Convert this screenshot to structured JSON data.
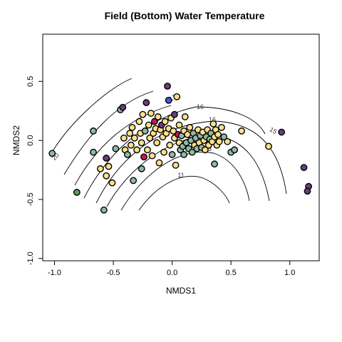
{
  "chart_data": {
    "type": "scatter",
    "title": "Field (Bottom) Water Temperature",
    "xlabel": "NMDS1",
    "ylabel": "NMDS2",
    "xlim": [
      -1.1,
      1.25
    ],
    "ylim": [
      -1.02,
      0.9
    ],
    "xticks": [
      "-1.0",
      "-0.5",
      "0.0",
      "0.5",
      "1.0"
    ],
    "yticks": [
      "-1.0",
      "-0.5",
      "0.0",
      "0.5"
    ],
    "contour_labels": [
      "20",
      "17",
      "16",
      "16",
      "15",
      "13",
      "11"
    ],
    "colors": {
      "purple": "#6a3d7c",
      "green": "#5aa25a",
      "sage": "#8fb8a0",
      "yellow": "#ffe08a",
      "magenta": "#c2185b",
      "blue": "#3b5bdb"
    },
    "points": [
      {
        "x": -1.02,
        "y": -0.11,
        "c": "sage"
      },
      {
        "x": -0.81,
        "y": -0.44,
        "c": "green"
      },
      {
        "x": -0.67,
        "y": 0.08,
        "c": "sage"
      },
      {
        "x": -0.67,
        "y": -0.1,
        "c": "sage"
      },
      {
        "x": -0.61,
        "y": -0.24,
        "c": "yellow"
      },
      {
        "x": -0.58,
        "y": -0.59,
        "c": "sage"
      },
      {
        "x": -0.56,
        "y": -0.15,
        "c": "purple"
      },
      {
        "x": -0.56,
        "y": -0.3,
        "c": "yellow"
      },
      {
        "x": -0.54,
        "y": -0.22,
        "c": "yellow"
      },
      {
        "x": -0.51,
        "y": -0.36,
        "c": "yellow"
      },
      {
        "x": -0.48,
        "y": -0.07,
        "c": "sage"
      },
      {
        "x": -0.44,
        "y": 0.26,
        "c": "sage"
      },
      {
        "x": -0.42,
        "y": 0.28,
        "c": "purple"
      },
      {
        "x": -0.41,
        "y": 0.02,
        "c": "yellow"
      },
      {
        "x": -0.4,
        "y": -0.08,
        "c": "yellow"
      },
      {
        "x": -0.38,
        "y": -0.12,
        "c": "sage"
      },
      {
        "x": -0.36,
        "y": 0.06,
        "c": "yellow"
      },
      {
        "x": -0.35,
        "y": -0.04,
        "c": "yellow"
      },
      {
        "x": -0.34,
        "y": 0.11,
        "c": "yellow"
      },
      {
        "x": -0.33,
        "y": -0.34,
        "c": "sage"
      },
      {
        "x": -0.32,
        "y": 0.02,
        "c": "yellow"
      },
      {
        "x": -0.3,
        "y": -0.08,
        "c": "yellow"
      },
      {
        "x": -0.28,
        "y": 0.16,
        "c": "yellow"
      },
      {
        "x": -0.27,
        "y": 0.06,
        "c": "yellow"
      },
      {
        "x": -0.26,
        "y": -0.02,
        "c": "yellow"
      },
      {
        "x": -0.26,
        "y": -0.24,
        "c": "sage"
      },
      {
        "x": -0.25,
        "y": 0.22,
        "c": "yellow"
      },
      {
        "x": -0.24,
        "y": -0.14,
        "c": "magenta"
      },
      {
        "x": -0.23,
        "y": 0.08,
        "c": "sage"
      },
      {
        "x": -0.22,
        "y": 0.32,
        "c": "purple"
      },
      {
        "x": -0.21,
        "y": -0.08,
        "c": "yellow"
      },
      {
        "x": -0.2,
        "y": 0.13,
        "c": "yellow"
      },
      {
        "x": -0.19,
        "y": 0.02,
        "c": "yellow"
      },
      {
        "x": -0.18,
        "y": 0.23,
        "c": "yellow"
      },
      {
        "x": -0.17,
        "y": -0.13,
        "c": "yellow"
      },
      {
        "x": -0.16,
        "y": 0.06,
        "c": "yellow"
      },
      {
        "x": -0.15,
        "y": 0.16,
        "c": "magenta"
      },
      {
        "x": -0.14,
        "y": 0.1,
        "c": "yellow"
      },
      {
        "x": -0.13,
        "y": -0.02,
        "c": "yellow"
      },
      {
        "x": -0.12,
        "y": 0.2,
        "c": "yellow"
      },
      {
        "x": -0.11,
        "y": -0.19,
        "c": "yellow"
      },
      {
        "x": -0.1,
        "y": 0.09,
        "c": "yellow"
      },
      {
        "x": -0.09,
        "y": 0.13,
        "c": "purple"
      },
      {
        "x": -0.08,
        "y": 0.03,
        "c": "yellow"
      },
      {
        "x": -0.07,
        "y": -0.1,
        "c": "yellow"
      },
      {
        "x": -0.06,
        "y": 0.16,
        "c": "yellow"
      },
      {
        "x": -0.05,
        "y": 0.06,
        "c": "yellow"
      },
      {
        "x": -0.04,
        "y": 0.46,
        "c": "purple"
      },
      {
        "x": -0.03,
        "y": 0.34,
        "c": "blue"
      },
      {
        "x": -0.03,
        "y": 0.1,
        "c": "yellow"
      },
      {
        "x": -0.02,
        "y": -0.04,
        "c": "yellow"
      },
      {
        "x": -0.01,
        "y": 0.19,
        "c": "yellow"
      },
      {
        "x": 0.0,
        "y": -0.12,
        "c": "sage"
      },
      {
        "x": 0.01,
        "y": 0.08,
        "c": "yellow"
      },
      {
        "x": 0.02,
        "y": 0.02,
        "c": "yellow"
      },
      {
        "x": 0.02,
        "y": 0.22,
        "c": "purple"
      },
      {
        "x": 0.03,
        "y": -0.21,
        "c": "yellow"
      },
      {
        "x": 0.04,
        "y": 0.37,
        "c": "yellow"
      },
      {
        "x": 0.05,
        "y": 0.05,
        "c": "magenta"
      },
      {
        "x": 0.06,
        "y": -0.02,
        "c": "yellow"
      },
      {
        "x": 0.06,
        "y": 0.13,
        "c": "yellow"
      },
      {
        "x": 0.07,
        "y": -0.08,
        "c": "sage"
      },
      {
        "x": 0.08,
        "y": 0.04,
        "c": "sage"
      },
      {
        "x": 0.09,
        "y": -0.05,
        "c": "sage"
      },
      {
        "x": 0.1,
        "y": 0.08,
        "c": "yellow"
      },
      {
        "x": 0.1,
        "y": -0.12,
        "c": "sage"
      },
      {
        "x": 0.11,
        "y": 0.2,
        "c": "yellow"
      },
      {
        "x": 0.12,
        "y": -0.02,
        "c": "sage"
      },
      {
        "x": 0.13,
        "y": 0.05,
        "c": "yellow"
      },
      {
        "x": 0.14,
        "y": -0.07,
        "c": "sage"
      },
      {
        "x": 0.15,
        "y": 0.11,
        "c": "yellow"
      },
      {
        "x": 0.16,
        "y": 0.0,
        "c": "sage"
      },
      {
        "x": 0.17,
        "y": -0.1,
        "c": "sage"
      },
      {
        "x": 0.18,
        "y": 0.06,
        "c": "sage"
      },
      {
        "x": 0.19,
        "y": -0.04,
        "c": "yellow"
      },
      {
        "x": 0.2,
        "y": 0.02,
        "c": "sage"
      },
      {
        "x": 0.21,
        "y": -0.07,
        "c": "sage"
      },
      {
        "x": 0.22,
        "y": 0.09,
        "c": "yellow"
      },
      {
        "x": 0.23,
        "y": -0.02,
        "c": "yellow"
      },
      {
        "x": 0.24,
        "y": 0.04,
        "c": "sage"
      },
      {
        "x": 0.25,
        "y": -0.06,
        "c": "sage"
      },
      {
        "x": 0.26,
        "y": 0.07,
        "c": "yellow"
      },
      {
        "x": 0.27,
        "y": 0.0,
        "c": "yellow"
      },
      {
        "x": 0.28,
        "y": -0.08,
        "c": "yellow"
      },
      {
        "x": 0.29,
        "y": 0.03,
        "c": "sage"
      },
      {
        "x": 0.3,
        "y": 0.09,
        "c": "yellow"
      },
      {
        "x": 0.31,
        "y": -0.04,
        "c": "yellow"
      },
      {
        "x": 0.32,
        "y": 0.01,
        "c": "sage"
      },
      {
        "x": 0.33,
        "y": 0.06,
        "c": "sage"
      },
      {
        "x": 0.34,
        "y": -0.01,
        "c": "yellow"
      },
      {
        "x": 0.35,
        "y": 0.14,
        "c": "yellow"
      },
      {
        "x": 0.36,
        "y": 0.03,
        "c": "yellow"
      },
      {
        "x": 0.37,
        "y": 0.09,
        "c": "yellow"
      },
      {
        "x": 0.38,
        "y": -0.04,
        "c": "yellow"
      },
      {
        "x": 0.39,
        "y": 0.05,
        "c": "yellow"
      },
      {
        "x": 0.4,
        "y": -0.01,
        "c": "yellow"
      },
      {
        "x": 0.42,
        "y": 0.11,
        "c": "yellow"
      },
      {
        "x": 0.44,
        "y": 0.03,
        "c": "sage"
      },
      {
        "x": 0.47,
        "y": -0.01,
        "c": "yellow"
      },
      {
        "x": 0.36,
        "y": -0.2,
        "c": "sage"
      },
      {
        "x": 0.5,
        "y": -0.1,
        "c": "sage"
      },
      {
        "x": 0.53,
        "y": -0.08,
        "c": "sage"
      },
      {
        "x": 0.59,
        "y": 0.08,
        "c": "yellow"
      },
      {
        "x": 0.82,
        "y": -0.05,
        "c": "yellow"
      },
      {
        "x": 0.93,
        "y": 0.07,
        "c": "purple"
      },
      {
        "x": 1.12,
        "y": -0.23,
        "c": "purple"
      },
      {
        "x": 1.16,
        "y": -0.39,
        "c": "purple"
      },
      {
        "x": 1.15,
        "y": -0.43,
        "c": "purple"
      }
    ]
  }
}
